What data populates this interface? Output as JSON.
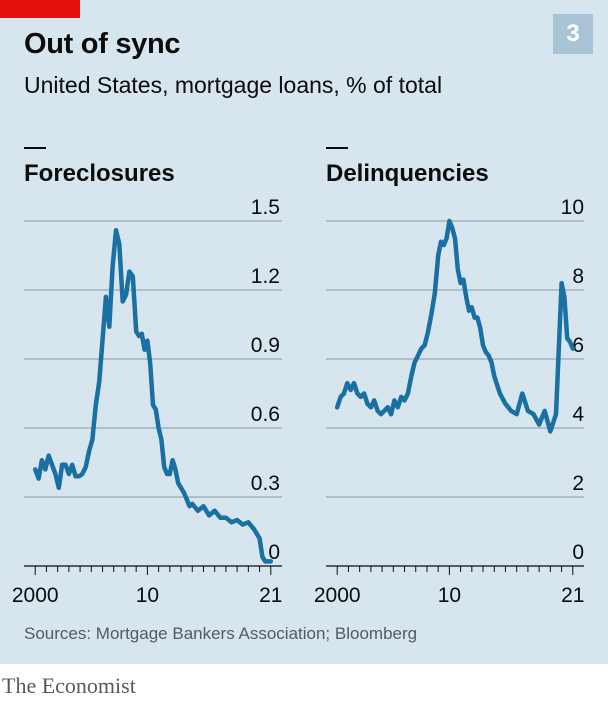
{
  "title": "Out of sync",
  "subtitle": "United States, mortgage loans, % of total",
  "badge": "3",
  "source": "Sources: Mortgage Bankers Association; Bloomberg",
  "brand": "The Economist",
  "colors": {
    "line": "#1a6fa3",
    "background": "#d6e5ee",
    "grid": "#8a9aa4",
    "accent": "#e3120b"
  },
  "chart_data": [
    {
      "type": "line",
      "title": "Foreclosures",
      "ylim": [
        0,
        1.5
      ],
      "yticks": [
        0,
        0.3,
        0.6,
        0.9,
        1.2,
        1.5
      ],
      "ytick_labels": [
        "0",
        "0.3",
        "0.6",
        "0.9",
        "1.2",
        "1.5"
      ],
      "xlim": [
        1999,
        2022
      ],
      "xticks": [
        2000,
        2010,
        2021
      ],
      "xtick_labels": [
        "2000",
        "10",
        "21"
      ],
      "grid": true,
      "series": [
        {
          "x": [
            2000,
            2000.3,
            2000.6,
            2000.9,
            2001.2,
            2001.5,
            2001.8,
            2002.1,
            2002.4,
            2002.7,
            2003,
            2003.3,
            2003.6,
            2003.9,
            2004.2,
            2004.5,
            2004.8,
            2005.1,
            2005.4,
            2005.7,
            2006,
            2006.3,
            2006.6,
            2006.9,
            2007.2,
            2007.5,
            2007.8,
            2008.1,
            2008.4,
            2008.7,
            2009,
            2009.25,
            2009.5,
            2009.75,
            2010,
            2010.25,
            2010.5,
            2010.75,
            2011,
            2011.25,
            2011.5,
            2011.75,
            2012,
            2012.25,
            2012.5,
            2012.75,
            2013,
            2013.25,
            2013.5,
            2013.75,
            2014,
            2014.5,
            2015,
            2015.5,
            2016,
            2016.5,
            2017,
            2017.5,
            2018,
            2018.5,
            2019,
            2019.5,
            2020,
            2020.25,
            2020.5,
            2020.75,
            2021
          ],
          "y": [
            0.42,
            0.38,
            0.46,
            0.42,
            0.48,
            0.44,
            0.4,
            0.34,
            0.44,
            0.44,
            0.4,
            0.44,
            0.39,
            0.39,
            0.4,
            0.43,
            0.5,
            0.55,
            0.7,
            0.8,
            0.98,
            1.17,
            1.04,
            1.3,
            1.46,
            1.4,
            1.15,
            1.18,
            1.28,
            1.26,
            1.02,
            1.0,
            1.01,
            0.94,
            0.98,
            0.88,
            0.7,
            0.68,
            0.6,
            0.55,
            0.43,
            0.4,
            0.4,
            0.46,
            0.42,
            0.36,
            0.34,
            0.32,
            0.29,
            0.26,
            0.27,
            0.24,
            0.26,
            0.22,
            0.24,
            0.21,
            0.21,
            0.19,
            0.2,
            0.18,
            0.19,
            0.16,
            0.12,
            0.04,
            0.02,
            0.02,
            0.02
          ]
        }
      ]
    },
    {
      "type": "line",
      "title": "Delinquencies",
      "ylim": [
        0,
        10
      ],
      "yticks": [
        0,
        2,
        4,
        6,
        8,
        10
      ],
      "ytick_labels": [
        "0",
        "2",
        "4",
        "6",
        "8",
        "10"
      ],
      "xlim": [
        1999,
        2022
      ],
      "xticks": [
        2000,
        2010,
        2021
      ],
      "xtick_labels": [
        "2000",
        "10",
        "21"
      ],
      "grid": true,
      "series": [
        {
          "x": [
            2000,
            2000.3,
            2000.6,
            2000.9,
            2001.2,
            2001.5,
            2001.8,
            2002.1,
            2002.4,
            2002.7,
            2003,
            2003.3,
            2003.6,
            2003.9,
            2004.2,
            2004.5,
            2004.8,
            2005.1,
            2005.4,
            2005.7,
            2006,
            2006.3,
            2006.6,
            2006.9,
            2007.2,
            2007.5,
            2007.8,
            2008.1,
            2008.4,
            2008.7,
            2009,
            2009.25,
            2009.5,
            2009.75,
            2010,
            2010.25,
            2010.5,
            2010.75,
            2011,
            2011.25,
            2011.5,
            2011.75,
            2012,
            2012.25,
            2012.5,
            2012.75,
            2013,
            2013.25,
            2013.5,
            2013.75,
            2014,
            2014.5,
            2015,
            2015.5,
            2016,
            2016.5,
            2017,
            2017.5,
            2018,
            2018.5,
            2019,
            2019.5,
            2020,
            2020.25,
            2020.5,
            2020.75,
            2021
          ],
          "y": [
            4.6,
            4.9,
            5.0,
            5.3,
            5.1,
            5.3,
            5.0,
            4.9,
            5.0,
            4.7,
            4.6,
            4.8,
            4.5,
            4.4,
            4.5,
            4.6,
            4.4,
            4.8,
            4.6,
            4.9,
            4.8,
            5.0,
            5.5,
            5.9,
            6.1,
            6.3,
            6.4,
            6.8,
            7.3,
            7.9,
            9.0,
            9.4,
            9.3,
            9.5,
            10.0,
            9.8,
            9.5,
            8.6,
            8.2,
            8.3,
            7.8,
            7.4,
            7.5,
            7.2,
            7.2,
            6.9,
            6.4,
            6.2,
            6.1,
            5.9,
            5.5,
            5.0,
            4.7,
            4.5,
            4.4,
            5.0,
            4.5,
            4.4,
            4.1,
            4.5,
            3.9,
            4.4,
            8.2,
            7.8,
            6.6,
            6.5,
            6.3
          ]
        }
      ]
    }
  ]
}
